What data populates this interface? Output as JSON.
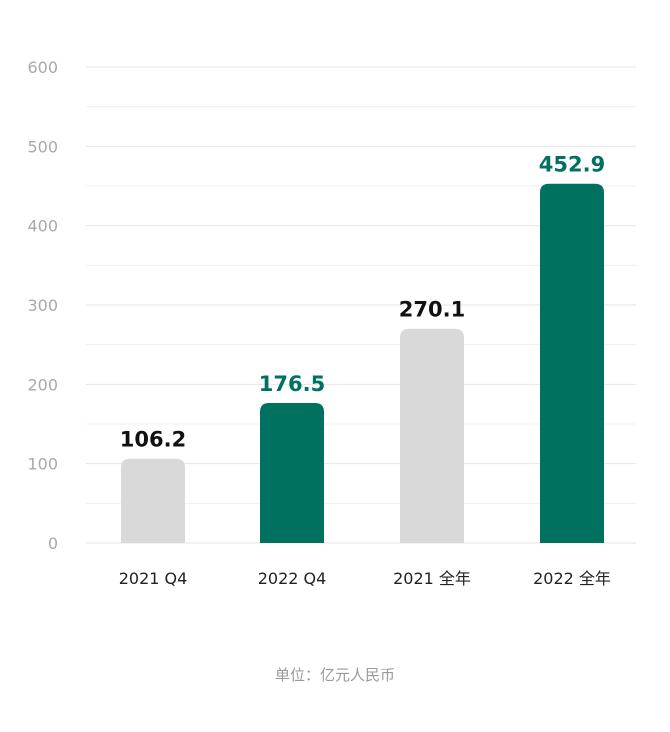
{
  "chart_data": {
    "type": "bar",
    "categories": [
      "2021 Q4",
      "2022 Q4",
      "2021 全年",
      "2022 全年"
    ],
    "values": [
      106.2,
      176.5,
      270.1,
      452.9
    ],
    "value_labels": [
      "106.2",
      "176.5",
      "270.1",
      "452.9"
    ],
    "highlighted": [
      false,
      true,
      false,
      true
    ],
    "ylim": [
      0,
      600
    ],
    "yticks": [
      0,
      100,
      200,
      300,
      400,
      500,
      600
    ],
    "minor_gridlines": [
      50,
      150,
      250,
      350,
      450,
      550
    ],
    "grid": true,
    "unit_note": "单位：亿元人民币",
    "colors": {
      "highlight": "#00705f",
      "normal": "#d9d9d9",
      "highlight_label": "#00705f",
      "normal_label": "#111111",
      "grid": "#e6e6e6"
    }
  }
}
